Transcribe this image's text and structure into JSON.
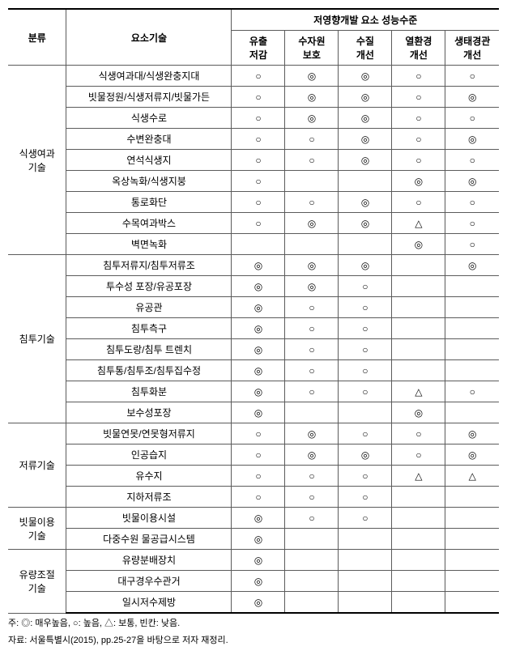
{
  "header": {
    "cat": "분류",
    "tech": "요소기술",
    "group": "저영향개발 요소 성능수준",
    "perf": [
      "유출\n저감",
      "수자원\n보호",
      "수질\n개선",
      "열환경\n개선",
      "생태경관\n개선"
    ]
  },
  "symbols": {
    "high": "◎",
    "med": "○",
    "low": "△"
  },
  "groups": [
    {
      "category": "식생여과\n기술",
      "rows": [
        {
          "tech": "식생여과대/식생완충지대",
          "v": [
            "○",
            "◎",
            "◎",
            "○",
            "○"
          ]
        },
        {
          "tech": "빗물정원/식생저류지/빗물가든",
          "v": [
            "○",
            "◎",
            "◎",
            "○",
            "◎"
          ]
        },
        {
          "tech": "식생수로",
          "v": [
            "○",
            "◎",
            "◎",
            "○",
            "○"
          ]
        },
        {
          "tech": "수변완충대",
          "v": [
            "○",
            "○",
            "◎",
            "○",
            "◎"
          ]
        },
        {
          "tech": "연석식생지",
          "v": [
            "○",
            "○",
            "◎",
            "○",
            "○"
          ]
        },
        {
          "tech": "옥상녹화/식생지붕",
          "v": [
            "○",
            "",
            "",
            "◎",
            "◎"
          ]
        },
        {
          "tech": "통로화단",
          "v": [
            "○",
            "○",
            "◎",
            "○",
            "○"
          ]
        },
        {
          "tech": "수목여과박스",
          "v": [
            "○",
            "◎",
            "◎",
            "△",
            "○"
          ]
        },
        {
          "tech": "벽면녹화",
          "v": [
            "",
            "",
            "",
            "◎",
            "○"
          ]
        }
      ]
    },
    {
      "category": "침투기술",
      "rows": [
        {
          "tech": "침투저류지/침투저류조",
          "v": [
            "◎",
            "◎",
            "◎",
            "",
            "◎"
          ]
        },
        {
          "tech": "투수성 포장/유공포장",
          "v": [
            "◎",
            "◎",
            "○",
            "",
            ""
          ]
        },
        {
          "tech": "유공관",
          "v": [
            "◎",
            "○",
            "○",
            "",
            ""
          ]
        },
        {
          "tech": "침투측구",
          "v": [
            "◎",
            "○",
            "○",
            "",
            ""
          ]
        },
        {
          "tech": "침투도랑/침투 트렌치",
          "v": [
            "◎",
            "○",
            "○",
            "",
            ""
          ]
        },
        {
          "tech": "침투통/침투조/침투집수정",
          "v": [
            "◎",
            "○",
            "○",
            "",
            ""
          ]
        },
        {
          "tech": "침투화분",
          "v": [
            "◎",
            "○",
            "○",
            "△",
            "○"
          ]
        },
        {
          "tech": "보수성포장",
          "v": [
            "◎",
            "",
            "",
            "◎",
            ""
          ]
        }
      ]
    },
    {
      "category": "저류기술",
      "rows": [
        {
          "tech": "빗물연못/연못형저류지",
          "v": [
            "○",
            "◎",
            "○",
            "○",
            "◎"
          ]
        },
        {
          "tech": "인공습지",
          "v": [
            "○",
            "◎",
            "◎",
            "○",
            "◎"
          ]
        },
        {
          "tech": "유수지",
          "v": [
            "○",
            "○",
            "○",
            "△",
            "△"
          ]
        },
        {
          "tech": "지하저류조",
          "v": [
            "○",
            "○",
            "○",
            "",
            ""
          ]
        }
      ]
    },
    {
      "category": "빗물이용\n기술",
      "rows": [
        {
          "tech": "빗물이용시설",
          "v": [
            "◎",
            "○",
            "○",
            "",
            ""
          ]
        },
        {
          "tech": "다중수원 물공급시스템",
          "v": [
            "◎",
            "",
            "",
            "",
            ""
          ]
        }
      ]
    },
    {
      "category": "유량조절\n기술",
      "rows": [
        {
          "tech": "유량분배장치",
          "v": [
            "◎",
            "",
            "",
            "",
            ""
          ]
        },
        {
          "tech": "대구경우수관거",
          "v": [
            "◎",
            "",
            "",
            "",
            ""
          ]
        },
        {
          "tech": "일시저수제방",
          "v": [
            "◎",
            "",
            "",
            "",
            ""
          ]
        }
      ]
    }
  ],
  "footnotes": [
    "주: ◎: 매우높음, ○: 높음, △: 보통, 빈칸: 낮음.",
    "자료: 서울특별시(2015), pp.25-27을 바탕으로 저자 재정리."
  ]
}
